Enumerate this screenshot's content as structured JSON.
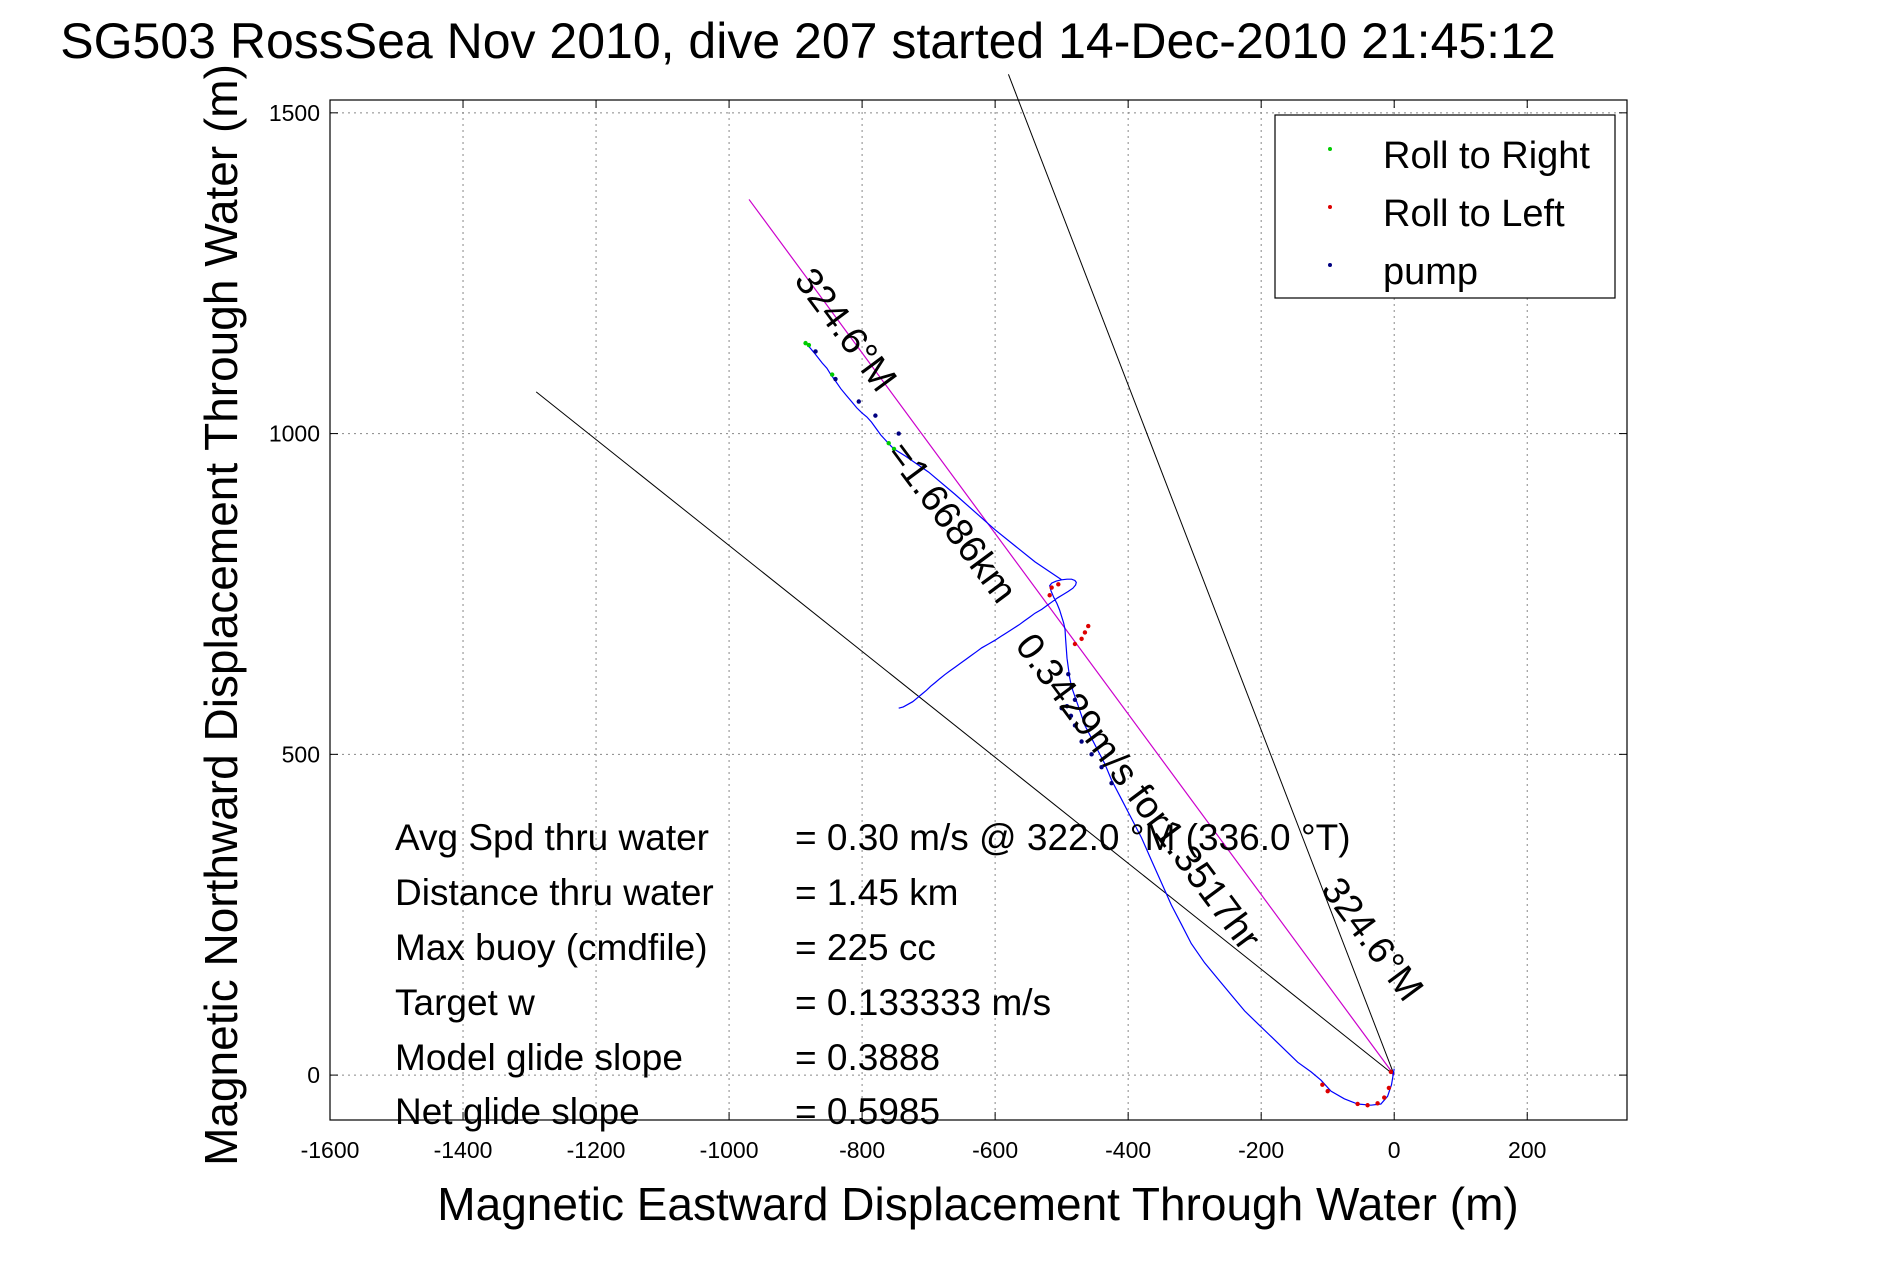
{
  "chart_data": {
    "type": "line",
    "title": "SG503 RossSea Nov 2010, dive 207 started 14-Dec-2010 21:45:12",
    "xlabel": "Magnetic Eastward Displacement Through Water (m)",
    "ylabel": "Magnetic Northward Displacement Through Water (m)",
    "xlim": [
      -1600,
      350
    ],
    "ylim": [
      -70,
      1520
    ],
    "xticks": [
      -1600,
      -1400,
      -1200,
      -1000,
      -800,
      -600,
      -400,
      -200,
      0,
      200
    ],
    "yticks": [
      0,
      500,
      1000,
      1500
    ],
    "grid": true,
    "legend_position": "top-right",
    "legend": [
      {
        "label": "Roll to Right",
        "color": "#00cc00"
      },
      {
        "label": "Roll to Left",
        "color": "#dd0000"
      },
      {
        "label": "pump",
        "color": "#000080"
      }
    ],
    "series": [
      {
        "color": "#0000ff",
        "x": [
          0,
          -4,
          -10,
          -20,
          -35,
          -55,
          -75,
          -95,
          -110,
          -125,
          -145,
          -165,
          -185,
          -205,
          -225,
          -245,
          -265,
          -285,
          -305,
          -320,
          -335,
          -350,
          -365,
          -380,
          -395,
          -410,
          -425,
          -435,
          -445,
          -455,
          -465,
          -470,
          -475,
          -480,
          -485,
          -488,
          -490,
          -492,
          -493,
          -494,
          -495,
          -497,
          -500,
          -503,
          -507,
          -512,
          -516,
          -518,
          -515,
          -508,
          -500,
          -492,
          -485,
          -480,
          -478,
          -479,
          -483,
          -490,
          -498,
          -506,
          -514,
          -522,
          -530,
          -540,
          -548,
          -556,
          -564,
          -573,
          -582,
          -591,
          -600,
          -610,
          -620,
          -628,
          -636,
          -644,
          -652,
          -660,
          -668,
          -676,
          -683,
          -690,
          -697,
          -703,
          -710,
          -717,
          -724,
          -731,
          -738,
          -745,
          -752,
          -758,
          -765,
          -772,
          -779,
          -786,
          -793,
          -800,
          -808,
          -816,
          -824,
          -832,
          -840,
          -847,
          -853,
          -860,
          -866,
          -872,
          -877,
          -881,
          -885
        ],
        "y": [
          10,
          -15,
          -33,
          -45,
          -47,
          -45,
          -37,
          -25,
          -8,
          5,
          20,
          40,
          60,
          80,
          100,
          125,
          150,
          175,
          205,
          235,
          265,
          300,
          335,
          370,
          400,
          430,
          460,
          485,
          505,
          525,
          545,
          560,
          575,
          590,
          605,
          620,
          635,
          650,
          665,
          680,
          695,
          705,
          715,
          725,
          735,
          745,
          755,
          763,
          767,
          770,
          772,
          773,
          773,
          771,
          768,
          764,
          759,
          754,
          749,
          744,
          738,
          732,
          726,
          720,
          714,
          708,
          702,
          696,
          690,
          684,
          678,
          672,
          666,
          660,
          654,
          648,
          642,
          636,
          630,
          624,
          618,
          612,
          606,
          600,
          594,
          588,
          582,
          578,
          574,
          572,
          976,
          982,
          990,
          998,
          1008,
          1018,
          1026,
          1032,
          1040,
          1050,
          1060,
          1070,
          1082,
          1092,
          1102,
          1110,
          1118,
          1126,
          1132,
          1137,
          1141
        ]
      }
    ],
    "glide_path": {
      "from": [
        0,
        0
      ],
      "to": [
        -970,
        1365
      ],
      "color": "#cc00cc"
    },
    "cone_lines": [
      {
        "from": [
          0,
          0
        ],
        "to": [
          -1290,
          1065
        ]
      },
      {
        "from": [
          0,
          0
        ],
        "to": [
          -580,
          1560
        ]
      }
    ],
    "path_labels": [
      {
        "text": "324.6°M",
        "x": -840,
        "y": 1150,
        "angle": -126.6
      },
      {
        "text": "=1.6686km",
        "x": -680,
        "y": 850,
        "angle": -126.6
      },
      {
        "text": "0.3429m/s for1.3517hr",
        "x": -400,
        "y": 430,
        "angle": -126.6
      },
      {
        "text": "324.6°M",
        "x": -48,
        "y": 200,
        "angle": -126.6
      }
    ]
  },
  "stats": [
    {
      "label": "Avg Spd thru water",
      "value": "=  0.30 m/s @  322.0 °M (336.0 °T)"
    },
    {
      "label": "Distance thru water",
      "value": "=  1.45 km"
    },
    {
      "label": "Max buoy (cmdfile)",
      "value": "= 225 cc"
    },
    {
      "label": "Target w",
      "value": "= 0.133333 m/s"
    },
    {
      "label": "Model glide slope",
      "value": "= 0.3888"
    },
    {
      "label": "Net glide slope",
      "value": "= 0.5985"
    }
  ]
}
